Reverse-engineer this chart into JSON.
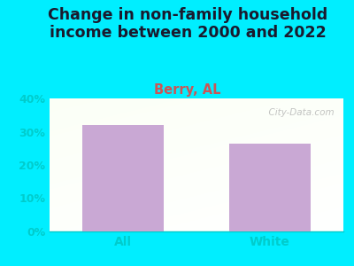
{
  "title": "Change in non-family household\nincome between 2000 and 2022",
  "subtitle": "Berry, AL",
  "categories": [
    "All",
    "White"
  ],
  "values": [
    32.0,
    26.5
  ],
  "bar_color": "#c9a8d4",
  "title_fontsize": 12.5,
  "subtitle_fontsize": 10.5,
  "subtitle_color": "#cc5555",
  "title_color": "#1a1a2e",
  "tick_color": "#00cccc",
  "ylim": [
    0,
    40
  ],
  "yticks": [
    0,
    10,
    20,
    30,
    40
  ],
  "ytick_labels": [
    "0%",
    "10%",
    "20%",
    "30%",
    "40%"
  ],
  "background_color": "#00eeff",
  "watermark": "  City-Data.com"
}
